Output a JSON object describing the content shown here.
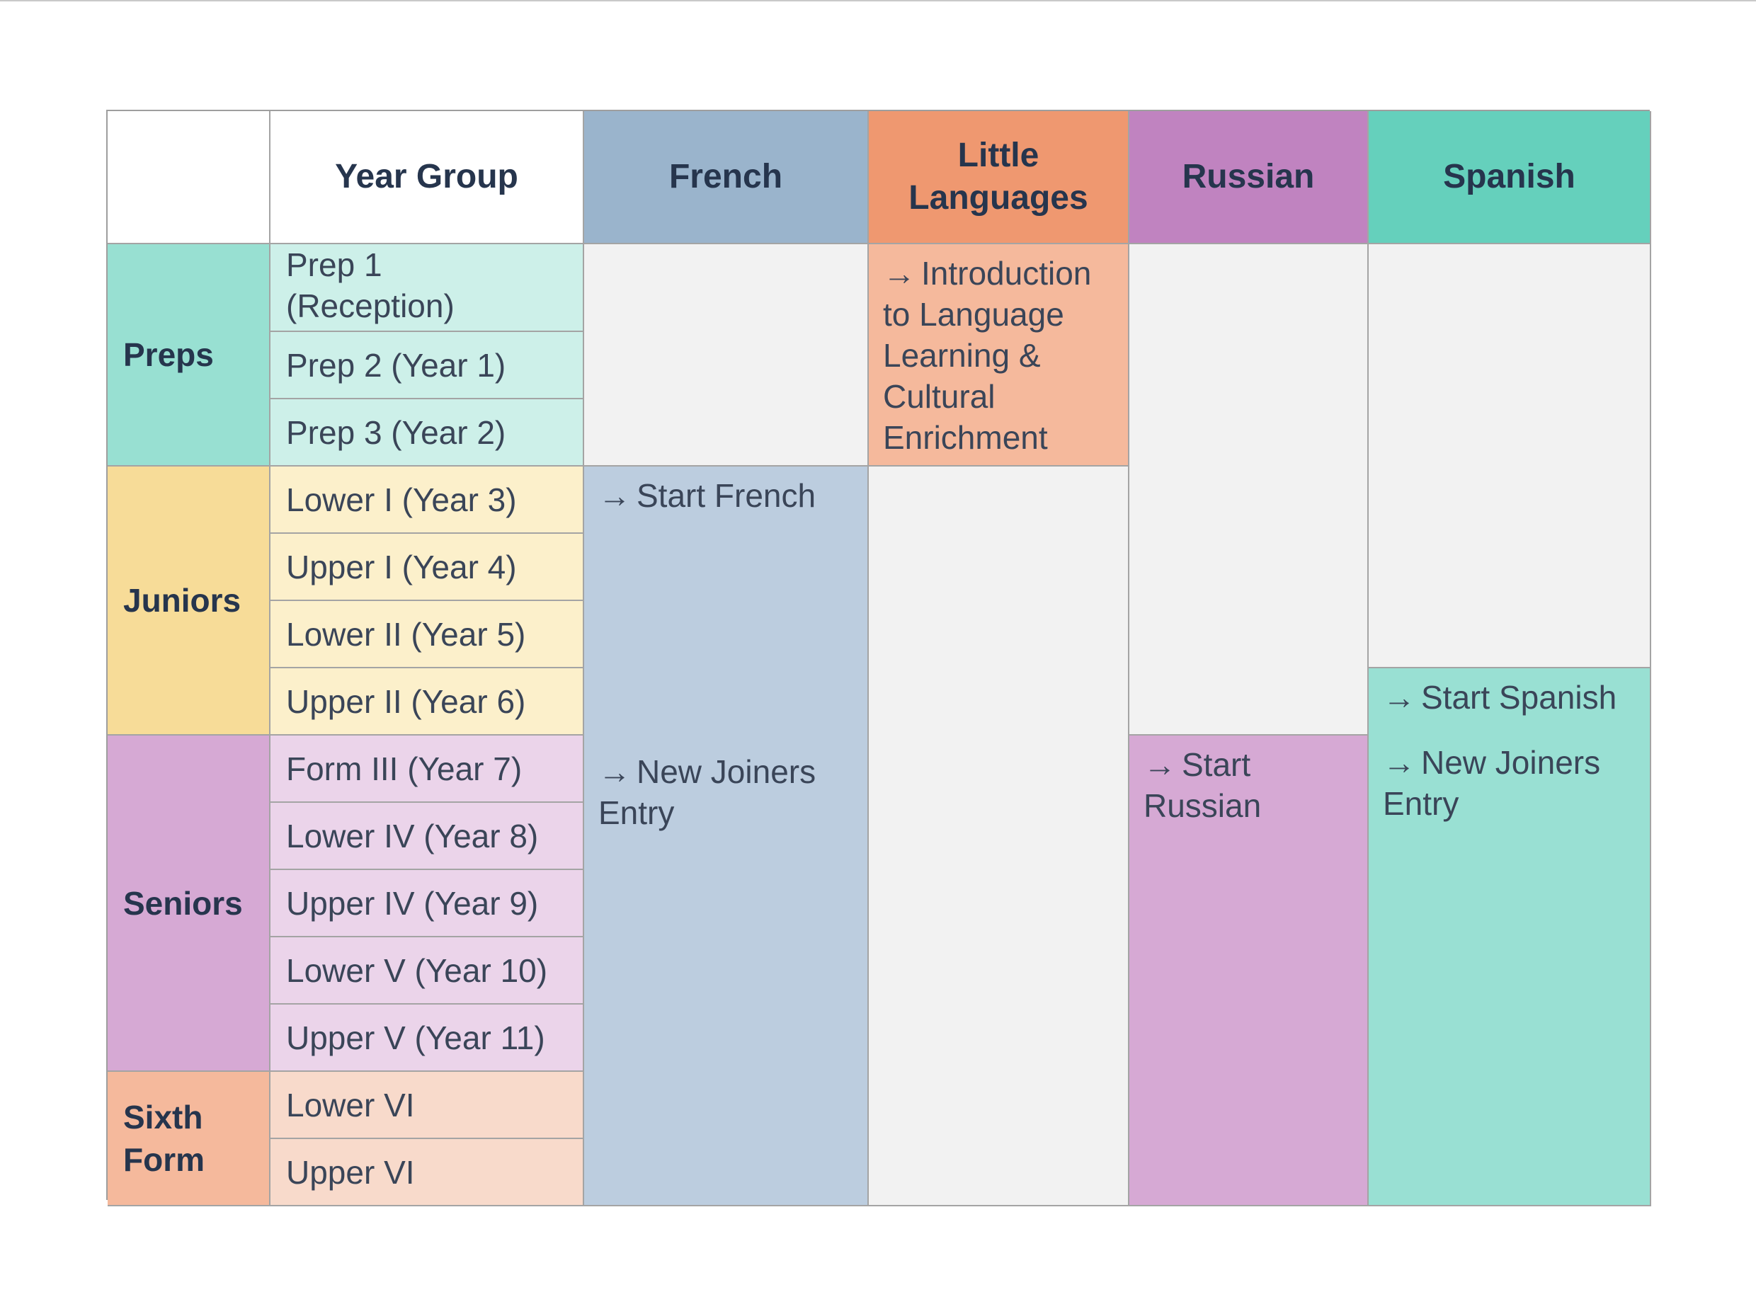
{
  "header": {
    "corner": "",
    "year_group": "Year Group",
    "french": "French",
    "little_languages_line1": "Little",
    "little_languages_line2": "Languages",
    "russian": "Russian",
    "spanish": "Spanish"
  },
  "groups": {
    "preps": "Preps",
    "juniors": "Juniors",
    "seniors": "Seniors",
    "sixth_form_line1": "Sixth",
    "sixth_form_line2": "Form"
  },
  "years": {
    "prep1_line1": "Prep 1",
    "prep1_line2": "(Reception)",
    "prep2": "Prep 2 (Year 1)",
    "prep3": "Prep 3 (Year 2)",
    "lower1": "Lower I (Year 3)",
    "upper1": "Upper I (Year 4)",
    "lower2": "Lower II (Year 5)",
    "upper2": "Upper II (Year 6)",
    "form3": "Form III (Year 7)",
    "lower4": "Lower IV (Year 8)",
    "upper4": "Upper IV (Year 9)",
    "lower5": "Lower V (Year 10)",
    "upper5": "Upper V (Year 11)",
    "lower6": "Lower VI",
    "upper6": "Upper VI"
  },
  "blocks": {
    "arrow": "→",
    "little_intro_line1": "Introduction",
    "little_intro_line2": "to Language",
    "little_intro_line3": "Learning &",
    "little_intro_line4": "Cultural",
    "little_intro_line5": "Enrichment",
    "french_start": "Start French",
    "french_joiners_line1": "New Joiners",
    "french_joiners_line2": "Entry",
    "russian_start_line1": "Start",
    "russian_start_line2": "Russian",
    "spanish_start": "Start Spanish",
    "spanish_joiners_line1": "New Joiners",
    "spanish_joiners_line2": "Entry"
  },
  "colors": {
    "french_header": "#9ab4cc",
    "french_body": "#bccddf",
    "little_header": "#ef9870",
    "little_body": "#f5b99c",
    "russian_header": "#c083c0",
    "russian_body": "#d6a9d4",
    "spanish_header": "#65d0bc",
    "spanish_body": "#99e0d3",
    "preps_group": "#98e0d2",
    "preps_year": "#cdf0e9",
    "juniors_group": "#f7dc98",
    "juniors_year": "#fcf0cb",
    "seniors_group": "#d6a9d4",
    "seniors_year": "#ebd4ea",
    "sixth_group": "#f5b99c",
    "sixth_year": "#f8dacb",
    "empty": "#f2f2f2"
  }
}
